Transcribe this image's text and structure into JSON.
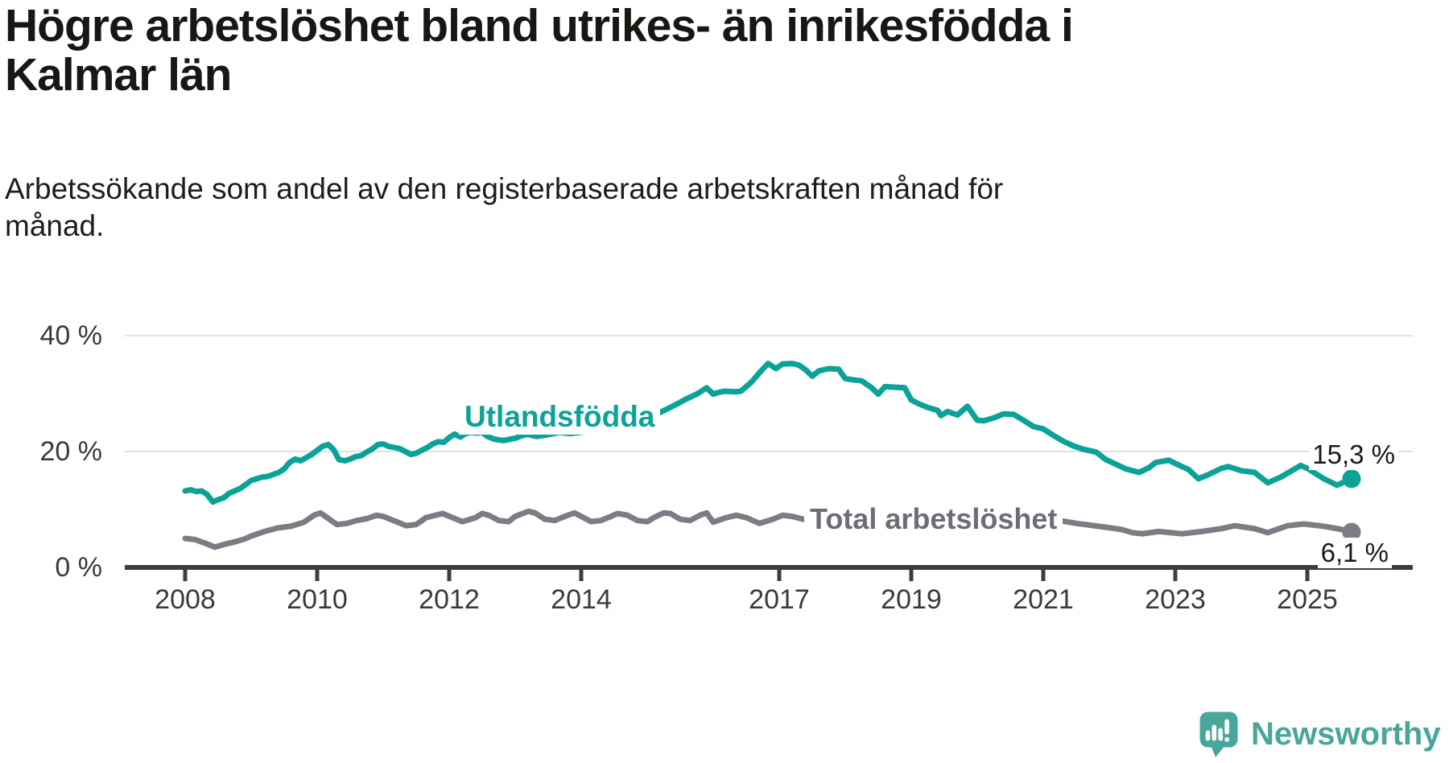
{
  "title_lines": [
    "Högre arbetslöshet bland utrikes- än inrikesfödda i",
    "Kalmar län"
  ],
  "subtitle_lines": [
    "Arbetssökande som andel av den registerbaserade arbetskraften månad för",
    "månad."
  ],
  "branding": {
    "name": "Newsworthy",
    "logo_icon": "speech-bubble-bar-chart-icon"
  },
  "colors": {
    "accent_teal": "#0ba298",
    "series_gray": "#7d7b83",
    "series_label_gray": "#6e6c74",
    "brand_teal": "#48a69a",
    "axis": "#3d3d3d",
    "tick_text": "#3a3a3a",
    "gridline": "#e0e0e0",
    "end_label_text": "#1a1a1a"
  },
  "chart_data": {
    "type": "line",
    "x_unit": "year (monthly data)",
    "xlim": [
      2007.1,
      2026.6
    ],
    "ylim": [
      0,
      42
    ],
    "grid": "horizontal",
    "legend_position": "inline-labels",
    "y_ticks": [
      {
        "value": 0,
        "label": "0 %"
      },
      {
        "value": 20,
        "label": "20 %"
      },
      {
        "value": 40,
        "label": "40 %"
      }
    ],
    "x_ticks": [
      {
        "value": 2008,
        "label": "2008"
      },
      {
        "value": 2010,
        "label": "2010"
      },
      {
        "value": 2012,
        "label": "2012"
      },
      {
        "value": 2014,
        "label": "2014"
      },
      {
        "value": 2017,
        "label": "2017"
      },
      {
        "value": 2019,
        "label": "2019"
      },
      {
        "value": 2021,
        "label": "2021"
      },
      {
        "value": 2023,
        "label": "2023"
      },
      {
        "value": 2025,
        "label": "2025"
      }
    ],
    "series": [
      {
        "name": "Utlandsfödda",
        "color": "#0ba298",
        "end_label": "15,3 %",
        "end_value": 15.3,
        "points": [
          [
            2008.0,
            13.2
          ],
          [
            2008.08,
            13.4
          ],
          [
            2008.17,
            13.1
          ],
          [
            2008.25,
            13.2
          ],
          [
            2008.33,
            12.6
          ],
          [
            2008.42,
            11.3
          ],
          [
            2008.5,
            11.7
          ],
          [
            2008.58,
            12.0
          ],
          [
            2008.67,
            12.8
          ],
          [
            2008.83,
            13.6
          ],
          [
            2008.92,
            14.3
          ],
          [
            2009.0,
            15.0
          ],
          [
            2009.17,
            15.6
          ],
          [
            2009.25,
            15.7
          ],
          [
            2009.42,
            16.4
          ],
          [
            2009.5,
            17.0
          ],
          [
            2009.58,
            18.1
          ],
          [
            2009.67,
            18.7
          ],
          [
            2009.75,
            18.4
          ],
          [
            2009.92,
            19.5
          ],
          [
            2010.0,
            20.2
          ],
          [
            2010.08,
            20.9
          ],
          [
            2010.17,
            21.2
          ],
          [
            2010.25,
            20.3
          ],
          [
            2010.33,
            18.6
          ],
          [
            2010.42,
            18.4
          ],
          [
            2010.5,
            18.7
          ],
          [
            2010.58,
            19.1
          ],
          [
            2010.67,
            19.3
          ],
          [
            2010.75,
            19.9
          ],
          [
            2010.83,
            20.4
          ],
          [
            2010.92,
            21.2
          ],
          [
            2011.0,
            21.3
          ],
          [
            2011.08,
            20.9
          ],
          [
            2011.17,
            20.7
          ],
          [
            2011.25,
            20.5
          ],
          [
            2011.42,
            19.5
          ],
          [
            2011.5,
            19.7
          ],
          [
            2011.58,
            20.2
          ],
          [
            2011.67,
            20.7
          ],
          [
            2011.75,
            21.3
          ],
          [
            2011.83,
            21.7
          ],
          [
            2011.92,
            21.6
          ],
          [
            2012.0,
            22.4
          ],
          [
            2012.08,
            23.0
          ],
          [
            2012.17,
            22.5
          ],
          [
            2012.25,
            23.1
          ],
          [
            2012.33,
            23.3
          ],
          [
            2012.42,
            23.2
          ],
          [
            2012.5,
            23.3
          ],
          [
            2012.58,
            22.6
          ],
          [
            2012.67,
            22.2
          ],
          [
            2012.75,
            22.0
          ],
          [
            2012.83,
            21.9
          ],
          [
            2013.0,
            22.3
          ],
          [
            2013.17,
            23.0
          ],
          [
            2013.33,
            22.6
          ],
          [
            2013.5,
            22.9
          ],
          [
            2013.67,
            23.3
          ],
          [
            2013.83,
            23.1
          ],
          [
            2014.0,
            23.3
          ],
          [
            2014.17,
            23.8
          ],
          [
            2014.33,
            24.0
          ],
          [
            2014.5,
            24.4
          ],
          [
            2014.67,
            24.8
          ],
          [
            2014.83,
            25.2
          ],
          [
            2015.0,
            25.8
          ],
          [
            2015.17,
            26.6
          ],
          [
            2015.33,
            27.5
          ],
          [
            2015.45,
            28.2
          ],
          [
            2015.58,
            29.0
          ],
          [
            2015.75,
            29.9
          ],
          [
            2015.9,
            31.0
          ],
          [
            2016.0,
            29.9
          ],
          [
            2016.08,
            30.2
          ],
          [
            2016.17,
            30.4
          ],
          [
            2016.33,
            30.3
          ],
          [
            2016.42,
            30.4
          ],
          [
            2016.58,
            32.0
          ],
          [
            2016.7,
            33.6
          ],
          [
            2016.83,
            35.2
          ],
          [
            2016.95,
            34.3
          ],
          [
            2017.05,
            35.1
          ],
          [
            2017.2,
            35.2
          ],
          [
            2017.3,
            34.9
          ],
          [
            2017.4,
            34.1
          ],
          [
            2017.5,
            33.0
          ],
          [
            2017.6,
            33.9
          ],
          [
            2017.75,
            34.3
          ],
          [
            2017.9,
            34.2
          ],
          [
            2018.0,
            32.6
          ],
          [
            2018.1,
            32.4
          ],
          [
            2018.25,
            32.2
          ],
          [
            2018.4,
            31.0
          ],
          [
            2018.5,
            29.9
          ],
          [
            2018.6,
            31.2
          ],
          [
            2018.75,
            31.1
          ],
          [
            2018.9,
            31.0
          ],
          [
            2019.0,
            28.9
          ],
          [
            2019.1,
            28.3
          ],
          [
            2019.25,
            27.6
          ],
          [
            2019.4,
            27.1
          ],
          [
            2019.45,
            26.2
          ],
          [
            2019.55,
            26.9
          ],
          [
            2019.7,
            26.3
          ],
          [
            2019.85,
            27.8
          ],
          [
            2020.0,
            25.4
          ],
          [
            2020.1,
            25.3
          ],
          [
            2020.25,
            25.8
          ],
          [
            2020.4,
            26.5
          ],
          [
            2020.55,
            26.4
          ],
          [
            2020.7,
            25.4
          ],
          [
            2020.85,
            24.3
          ],
          [
            2021.0,
            23.9
          ],
          [
            2021.15,
            22.8
          ],
          [
            2021.3,
            21.8
          ],
          [
            2021.45,
            21.0
          ],
          [
            2021.6,
            20.4
          ],
          [
            2021.8,
            19.9
          ],
          [
            2021.95,
            18.6
          ],
          [
            2022.1,
            17.8
          ],
          [
            2022.25,
            17.0
          ],
          [
            2022.45,
            16.4
          ],
          [
            2022.6,
            17.2
          ],
          [
            2022.7,
            18.1
          ],
          [
            2022.9,
            18.5
          ],
          [
            2023.1,
            17.4
          ],
          [
            2023.2,
            16.9
          ],
          [
            2023.35,
            15.3
          ],
          [
            2023.5,
            16.0
          ],
          [
            2023.7,
            17.1
          ],
          [
            2023.8,
            17.4
          ],
          [
            2024.0,
            16.7
          ],
          [
            2024.2,
            16.4
          ],
          [
            2024.4,
            14.6
          ],
          [
            2024.6,
            15.6
          ],
          [
            2024.9,
            17.6
          ],
          [
            2025.0,
            17.1
          ],
          [
            2025.25,
            15.3
          ],
          [
            2025.45,
            14.2
          ],
          [
            2025.67,
            15.3
          ]
        ]
      },
      {
        "name": "Total arbetslöshet",
        "color": "#7d7b83",
        "end_label": "6,1 %",
        "end_value": 6.1,
        "points": [
          [
            2008.0,
            5.0
          ],
          [
            2008.15,
            4.8
          ],
          [
            2008.3,
            4.2
          ],
          [
            2008.45,
            3.5
          ],
          [
            2008.6,
            4.0
          ],
          [
            2008.75,
            4.4
          ],
          [
            2008.9,
            4.9
          ],
          [
            2009.0,
            5.4
          ],
          [
            2009.2,
            6.2
          ],
          [
            2009.4,
            6.8
          ],
          [
            2009.6,
            7.1
          ],
          [
            2009.8,
            7.8
          ],
          [
            2009.95,
            9.0
          ],
          [
            2010.05,
            9.4
          ],
          [
            2010.15,
            8.6
          ],
          [
            2010.3,
            7.4
          ],
          [
            2010.45,
            7.6
          ],
          [
            2010.6,
            8.1
          ],
          [
            2010.75,
            8.4
          ],
          [
            2010.9,
            9.0
          ],
          [
            2011.0,
            8.8
          ],
          [
            2011.2,
            7.9
          ],
          [
            2011.35,
            7.2
          ],
          [
            2011.5,
            7.4
          ],
          [
            2011.65,
            8.6
          ],
          [
            2011.9,
            9.3
          ],
          [
            2012.05,
            8.6
          ],
          [
            2012.2,
            7.9
          ],
          [
            2012.4,
            8.6
          ],
          [
            2012.5,
            9.3
          ],
          [
            2012.6,
            9.0
          ],
          [
            2012.75,
            8.1
          ],
          [
            2012.9,
            7.9
          ],
          [
            2013.0,
            8.8
          ],
          [
            2013.2,
            9.7
          ],
          [
            2013.3,
            9.4
          ],
          [
            2013.45,
            8.3
          ],
          [
            2013.6,
            8.1
          ],
          [
            2013.75,
            8.8
          ],
          [
            2013.9,
            9.4
          ],
          [
            2014.0,
            8.8
          ],
          [
            2014.15,
            7.9
          ],
          [
            2014.3,
            8.1
          ],
          [
            2014.45,
            8.8
          ],
          [
            2014.55,
            9.3
          ],
          [
            2014.7,
            9.0
          ],
          [
            2014.85,
            8.1
          ],
          [
            2015.0,
            7.9
          ],
          [
            2015.1,
            8.6
          ],
          [
            2015.25,
            9.4
          ],
          [
            2015.35,
            9.3
          ],
          [
            2015.5,
            8.3
          ],
          [
            2015.65,
            8.1
          ],
          [
            2015.8,
            9.0
          ],
          [
            2015.9,
            9.4
          ],
          [
            2016.0,
            7.8
          ],
          [
            2016.2,
            8.6
          ],
          [
            2016.35,
            9.0
          ],
          [
            2016.5,
            8.6
          ],
          [
            2016.7,
            7.6
          ],
          [
            2016.9,
            8.3
          ],
          [
            2017.05,
            9.0
          ],
          [
            2017.2,
            8.8
          ],
          [
            2017.4,
            8.2
          ],
          [
            2017.55,
            8.0
          ],
          [
            2017.7,
            7.8
          ],
          [
            2017.9,
            8.3
          ],
          [
            2018.1,
            7.9
          ],
          [
            2018.3,
            7.2
          ],
          [
            2018.5,
            7.0
          ],
          [
            2018.7,
            7.4
          ],
          [
            2018.9,
            7.6
          ],
          [
            2019.1,
            7.2
          ],
          [
            2019.3,
            6.9
          ],
          [
            2019.5,
            7.1
          ],
          [
            2019.7,
            7.4
          ],
          [
            2019.9,
            7.6
          ],
          [
            2020.1,
            7.9
          ],
          [
            2020.3,
            9.0
          ],
          [
            2020.5,
            9.5
          ],
          [
            2020.7,
            9.2
          ],
          [
            2020.9,
            8.8
          ],
          [
            2021.1,
            8.4
          ],
          [
            2021.3,
            8.0
          ],
          [
            2021.5,
            7.6
          ],
          [
            2021.7,
            7.3
          ],
          [
            2021.9,
            7.0
          ],
          [
            2022.1,
            6.7
          ],
          [
            2022.2,
            6.5
          ],
          [
            2022.35,
            6.0
          ],
          [
            2022.5,
            5.8
          ],
          [
            2022.75,
            6.2
          ],
          [
            2023.1,
            5.8
          ],
          [
            2023.4,
            6.2
          ],
          [
            2023.7,
            6.7
          ],
          [
            2023.9,
            7.2
          ],
          [
            2024.2,
            6.7
          ],
          [
            2024.4,
            6.0
          ],
          [
            2024.7,
            7.2
          ],
          [
            2024.95,
            7.5
          ],
          [
            2025.25,
            7.1
          ],
          [
            2025.5,
            6.6
          ],
          [
            2025.67,
            6.1
          ]
        ]
      }
    ]
  }
}
